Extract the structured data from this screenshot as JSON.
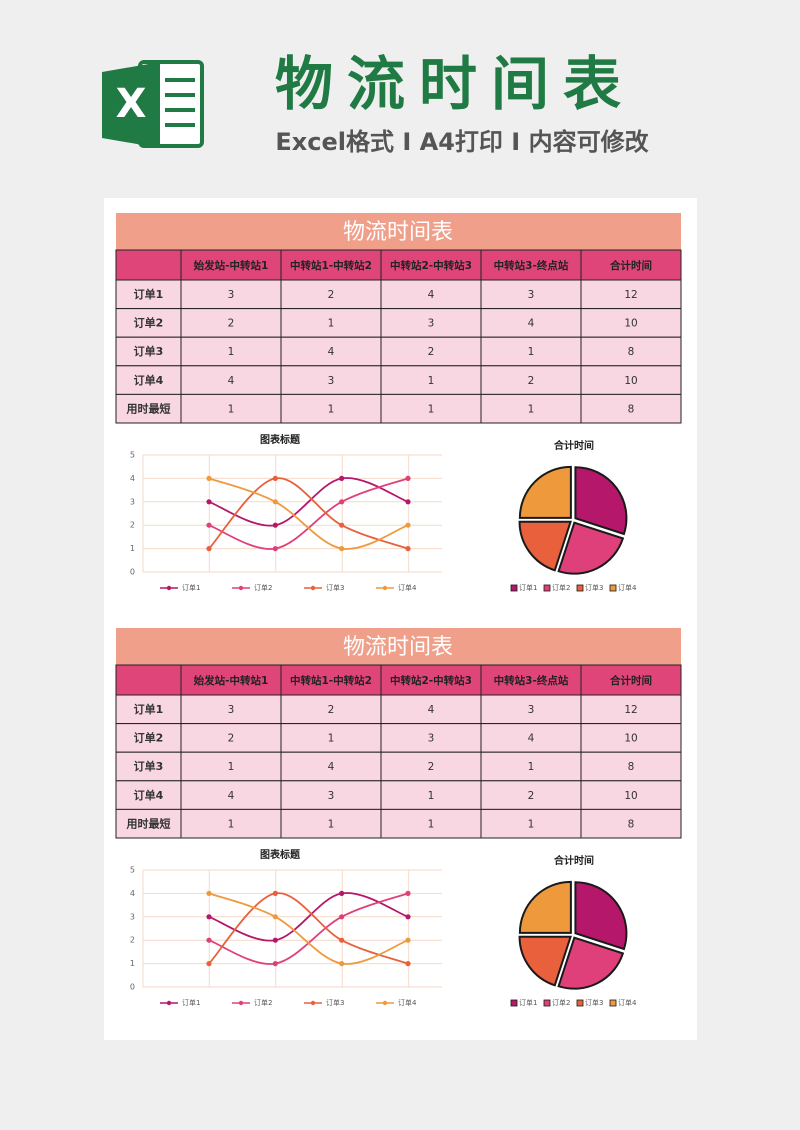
{
  "header": {
    "icon_letter": "X",
    "title": "物流时间表",
    "subtitle": "Excel格式 I A4打印 I 内容可修改"
  },
  "sections": [
    {
      "title": "物流时间表",
      "table": {
        "columns": [
          "始发站-中转站1",
          "中转站1-中转站2",
          "中转站2-中转站3",
          "中转站3-终点站",
          "合计时间"
        ],
        "rows": [
          [
            "订单1",
            3,
            2,
            4,
            3,
            12
          ],
          [
            "订单2",
            2,
            1,
            3,
            4,
            10
          ],
          [
            "订单3",
            1,
            4,
            2,
            1,
            8
          ],
          [
            "订单4",
            4,
            3,
            1,
            2,
            10
          ],
          [
            "用时最短",
            1,
            1,
            1,
            1,
            8
          ]
        ]
      },
      "charts": [
        {
          "type": "line",
          "title": "图表标题",
          "categories": [
            null,
            null,
            null,
            null
          ],
          "series": [
            {
              "name": "订单1",
              "color": "#b5176a",
              "values": [
                3,
                2,
                4,
                3
              ]
            },
            {
              "name": "订单2",
              "color": "#e0407a",
              "values": [
                2,
                1,
                3,
                4
              ]
            },
            {
              "name": "订单3",
              "color": "#e8603c",
              "values": [
                1,
                4,
                2,
                1
              ]
            },
            {
              "name": "订单4",
              "color": "#ee9a3c",
              "values": [
                4,
                3,
                1,
                2
              ]
            }
          ],
          "ylim": [
            0,
            5
          ],
          "yticks": [
            0,
            1,
            2,
            3,
            4,
            5
          ],
          "grid": true,
          "legend": "bottom"
        },
        {
          "type": "pie",
          "title": "合计时间",
          "categories": [
            "订单1",
            "订单2",
            "订单3",
            "订单4"
          ],
          "values": [
            12,
            10,
            8,
            10
          ],
          "colors": [
            "#b5176a",
            "#e0407a",
            "#e8603c",
            "#ee9a3c"
          ],
          "legend": "bottom"
        }
      ]
    },
    {
      "title": "物流时间表",
      "table": {
        "columns": [
          "始发站-中转站1",
          "中转站1-中转站2",
          "中转站2-中转站3",
          "中转站3-终点站",
          "合计时间"
        ],
        "rows": [
          [
            "订单1",
            3,
            2,
            4,
            3,
            12
          ],
          [
            "订单2",
            2,
            1,
            3,
            4,
            10
          ],
          [
            "订单3",
            1,
            4,
            2,
            1,
            8
          ],
          [
            "订单4",
            4,
            3,
            1,
            2,
            10
          ],
          [
            "用时最短",
            1,
            1,
            1,
            1,
            8
          ]
        ]
      },
      "charts": [
        {
          "type": "line",
          "title": "图表标题",
          "categories": [
            null,
            null,
            null,
            null
          ],
          "series": [
            {
              "name": "订单1",
              "color": "#b5176a",
              "values": [
                3,
                2,
                4,
                3
              ]
            },
            {
              "name": "订单2",
              "color": "#e0407a",
              "values": [
                2,
                1,
                3,
                4
              ]
            },
            {
              "name": "订单3",
              "color": "#e8603c",
              "values": [
                1,
                4,
                2,
                1
              ]
            },
            {
              "name": "订单4",
              "color": "#ee9a3c",
              "values": [
                4,
                3,
                1,
                2
              ]
            }
          ],
          "ylim": [
            0,
            5
          ],
          "yticks": [
            0,
            1,
            2,
            3,
            4,
            5
          ],
          "grid": true,
          "legend": "bottom"
        },
        {
          "type": "pie",
          "title": "合计时间",
          "categories": [
            "订单1",
            "订单2",
            "订单3",
            "订单4"
          ],
          "values": [
            12,
            10,
            8,
            10
          ],
          "colors": [
            "#b5176a",
            "#e0407a",
            "#e8603c",
            "#ee9a3c"
          ],
          "legend": "bottom"
        }
      ]
    }
  ]
}
